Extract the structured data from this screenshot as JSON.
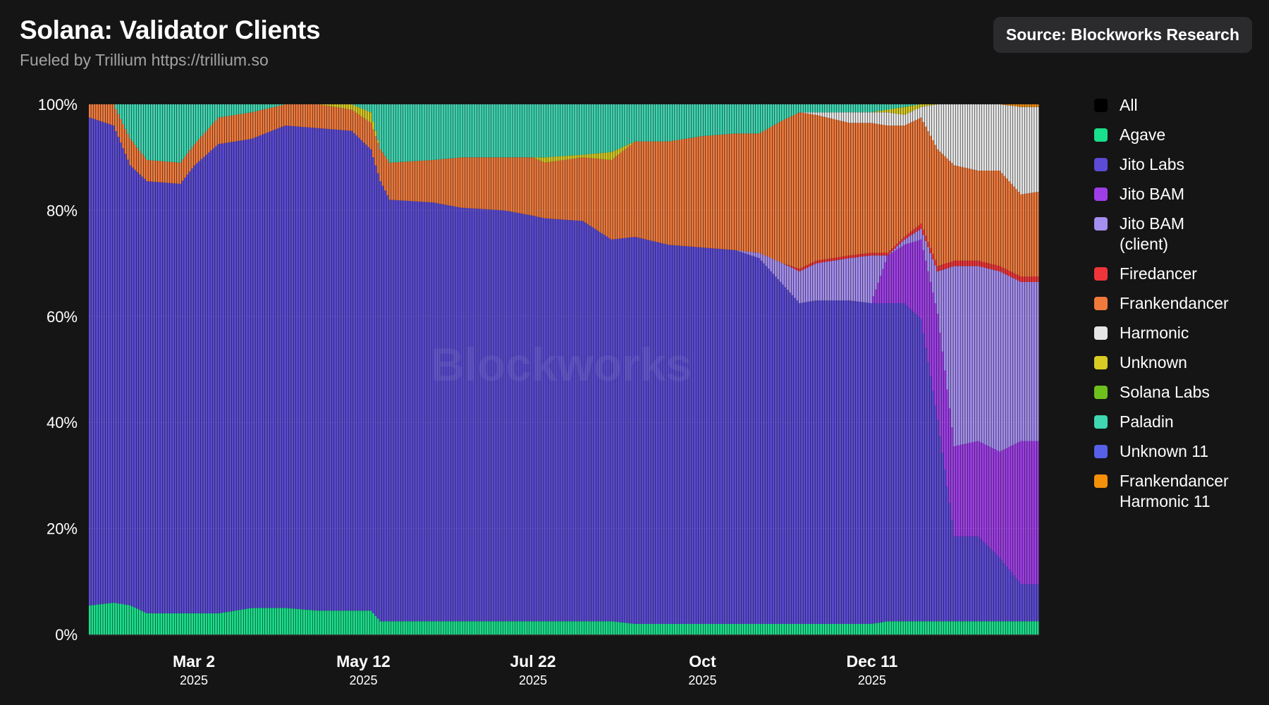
{
  "header": {
    "title": "Solana: Validator Clients",
    "subtitle": "Fueled by Trillium https://trillium.so",
    "source_badge": "Source: Blockworks Research"
  },
  "watermark": "Blockworks",
  "legend": [
    {
      "label": "All",
      "color": "#000000"
    },
    {
      "label": "Agave",
      "color": "#19e08b"
    },
    {
      "label": "Jito Labs",
      "color": "#5b4bd6"
    },
    {
      "label": "Jito BAM",
      "color": "#9f3ee8"
    },
    {
      "label": "Jito BAM\n(client)",
      "color": "#a48ef0"
    },
    {
      "label": "Firedancer",
      "color": "#f0353a"
    },
    {
      "label": "Frankendancer",
      "color": "#f07a3c"
    },
    {
      "label": "Harmonic",
      "color": "#e6e6e6"
    },
    {
      "label": "Unknown",
      "color": "#d8cc24"
    },
    {
      "label": "Solana Labs",
      "color": "#6ec01c"
    },
    {
      "label": "Paladin",
      "color": "#3fd6b2"
    },
    {
      "label": "Unknown 11",
      "color": "#5660e8"
    },
    {
      "label": "Frankendancer\nHarmonic 11",
      "color": "#f5900a"
    }
  ],
  "chart_data": {
    "type": "area",
    "stacked": true,
    "percent": true,
    "ylim": [
      0,
      100
    ],
    "yticks": [
      "0%",
      "20%",
      "40%",
      "60%",
      "80%",
      "100%"
    ],
    "xticks": [
      {
        "x": "2025-03-02",
        "label": "Mar 2",
        "year": "2025"
      },
      {
        "x": "2025-05-12",
        "label": "May 12",
        "year": "2025"
      },
      {
        "x": "2025-07-22",
        "label": "Jul 22",
        "year": "2025"
      },
      {
        "x": "2025-10-01",
        "label": "Oct",
        "year": "2025"
      },
      {
        "x": "2025-12-11",
        "label": "Dec 11",
        "year": "2025"
      }
    ],
    "x_range": [
      "2025-01-17",
      "2026-02-19"
    ],
    "series_order": [
      "Agave",
      "Jito Labs",
      "Jito BAM",
      "Jito BAM (client)",
      "Firedancer",
      "Frankendancer",
      "Harmonic",
      "Unknown",
      "Paladin",
      "Frankendancer Harmonic 11"
    ],
    "colors": {
      "Agave": "#19e08b",
      "Jito Labs": "#5b4bd6",
      "Jito BAM": "#9f3ee8",
      "Jito BAM (client)": "#a48ef0",
      "Firedancer": "#f0353a",
      "Frankendancer": "#f07a3c",
      "Harmonic": "#e6e6e6",
      "Unknown": "#d8cc24",
      "Paladin": "#3fd6b2",
      "Frankendancer Harmonic 11": "#f5900a"
    },
    "points": [
      {
        "x": "2025-01-17",
        "Agave": 5.5,
        "Jito Labs": 92,
        "Frankendancer": 2.5,
        "Paladin": 0
      },
      {
        "x": "2025-01-27",
        "Agave": 6,
        "Jito Labs": 90,
        "Frankendancer": 4,
        "Paladin": 0
      },
      {
        "x": "2025-02-03",
        "Agave": 5.5,
        "Jito Labs": 83,
        "Frankendancer": 5,
        "Paladin": 6.5
      },
      {
        "x": "2025-02-10",
        "Agave": 4,
        "Jito Labs": 81.5,
        "Frankendancer": 4,
        "Paladin": 10.5
      },
      {
        "x": "2025-02-24",
        "Agave": 4,
        "Jito Labs": 81,
        "Frankendancer": 4,
        "Paladin": 11
      },
      {
        "x": "2025-03-02",
        "Agave": 4,
        "Jito Labs": 84.5,
        "Frankendancer": 4,
        "Paladin": 7.5
      },
      {
        "x": "2025-03-12",
        "Agave": 4,
        "Jito Labs": 88.5,
        "Frankendancer": 5,
        "Paladin": 2.5
      },
      {
        "x": "2025-03-26",
        "Agave": 5,
        "Jito Labs": 88.5,
        "Frankendancer": 5,
        "Paladin": 1.5
      },
      {
        "x": "2025-04-09",
        "Agave": 5,
        "Jito Labs": 91,
        "Frankendancer": 4,
        "Paladin": 0
      },
      {
        "x": "2025-04-23",
        "Agave": 4.5,
        "Jito Labs": 91,
        "Frankendancer": 4.5,
        "Paladin": 0
      },
      {
        "x": "2025-05-07",
        "Agave": 4.5,
        "Jito Labs": 90.5,
        "Frankendancer": 4,
        "Unknown": 1,
        "Paladin": 0
      },
      {
        "x": "2025-05-15",
        "Agave": 4.5,
        "Jito Labs": 87,
        "Frankendancer": 5,
        "Unknown": 2,
        "Paladin": 1.5
      },
      {
        "x": "2025-05-19",
        "Agave": 2.5,
        "Jito Labs": 83,
        "Frankendancer": 6,
        "Paladin": 8.5
      },
      {
        "x": "2025-05-23",
        "Agave": 2.5,
        "Jito Labs": 79.5,
        "Frankendancer": 7,
        "Paladin": 11
      },
      {
        "x": "2025-06-10",
        "Agave": 2.5,
        "Jito Labs": 79,
        "Frankendancer": 8,
        "Paladin": 10.5
      },
      {
        "x": "2025-06-22",
        "Agave": 2.5,
        "Jito Labs": 78,
        "Frankendancer": 9.5,
        "Paladin": 10
      },
      {
        "x": "2025-07-10",
        "Agave": 2.5,
        "Jito Labs": 77.5,
        "Frankendancer": 10,
        "Paladin": 10
      },
      {
        "x": "2025-07-22",
        "Agave": 2.5,
        "Jito Labs": 76.5,
        "Frankendancer": 11,
        "Paladin": 10
      },
      {
        "x": "2025-07-27",
        "Agave": 2.5,
        "Jito Labs": 76,
        "Frankendancer": 10.5,
        "Unknown": 1,
        "Paladin": 10
      },
      {
        "x": "2025-08-12",
        "Agave": 2.5,
        "Jito Labs": 75.5,
        "Frankendancer": 12,
        "Unknown": 0.5,
        "Paladin": 9.5
      },
      {
        "x": "2025-08-24",
        "Agave": 2.5,
        "Jito Labs": 72,
        "Frankendancer": 15,
        "Unknown": 1.5,
        "Paladin": 9
      },
      {
        "x": "2025-09-03",
        "Agave": 2,
        "Jito Labs": 73,
        "Frankendancer": 18,
        "Paladin": 7
      },
      {
        "x": "2025-09-17",
        "Agave": 2,
        "Jito Labs": 71.5,
        "Frankendancer": 19.5,
        "Paladin": 7
      },
      {
        "x": "2025-10-01",
        "Agave": 2,
        "Jito Labs": 71,
        "Frankendancer": 21,
        "Paladin": 6
      },
      {
        "x": "2025-10-15",
        "Agave": 2,
        "Jito Labs": 70.5,
        "Frankendancer": 22,
        "Paladin": 5.5
      },
      {
        "x": "2025-10-25",
        "Agave": 2,
        "Jito Labs": 69,
        "Jito BAM (client)": 1,
        "Frankendancer": 22.5,
        "Paladin": 5.5
      },
      {
        "x": "2025-11-04",
        "Agave": 2,
        "Jito Labs": 64,
        "Jito BAM (client)": 4,
        "Frankendancer": 27,
        "Paladin": 3
      },
      {
        "x": "2025-11-11",
        "Agave": 2,
        "Jito Labs": 60.5,
        "Jito BAM (client)": 6,
        "Firedancer": 0.5,
        "Frankendancer": 29.5,
        "Paladin": 1.5
      },
      {
        "x": "2025-11-18",
        "Agave": 2,
        "Jito Labs": 61,
        "Jito BAM (client)": 7,
        "Firedancer": 0.5,
        "Frankendancer": 27.5,
        "Harmonic": 0.5,
        "Paladin": 1.5
      },
      {
        "x": "2025-12-02",
        "Agave": 2,
        "Jito Labs": 61,
        "Jito BAM (client)": 8,
        "Firedancer": 0.5,
        "Frankendancer": 25,
        "Harmonic": 2,
        "Paladin": 1.5
      },
      {
        "x": "2025-12-11",
        "Agave": 2,
        "Jito Labs": 60.5,
        "Jito BAM (client)": 9,
        "Firedancer": 0.5,
        "Frankendancer": 24.5,
        "Harmonic": 2,
        "Paladin": 1.5
      },
      {
        "x": "2025-12-18",
        "Agave": 2.5,
        "Jito Labs": 60,
        "Jito BAM": 9,
        "Firedancer": 0.5,
        "Frankendancer": 24,
        "Harmonic": 2.5,
        "Unknown": 0.5,
        "Paladin": 1
      },
      {
        "x": "2025-12-25",
        "Agave": 2.5,
        "Jito Labs": 60,
        "Jito BAM": 11,
        "Jito BAM (client)": 1,
        "Firedancer": 0.5,
        "Frankendancer": 21,
        "Harmonic": 2,
        "Unknown": 1.5,
        "Paladin": 0.5
      },
      {
        "x": "2026-01-01",
        "Agave": 2.5,
        "Jito Labs": 57,
        "Jito BAM": 15,
        "Jito BAM (client)": 2,
        "Firedancer": 1,
        "Frankendancer": 20,
        "Harmonic": 2,
        "Unknown": 0.5
      },
      {
        "x": "2026-01-08",
        "Agave": 2.5,
        "Jito Labs": 38,
        "Jito BAM": 20,
        "Jito BAM (client)": 8,
        "Firedancer": 1,
        "Frankendancer": 22,
        "Harmonic": 8.5
      },
      {
        "x": "2026-01-15",
        "Agave": 2.5,
        "Jito Labs": 16,
        "Jito BAM": 17,
        "Jito BAM (client)": 34,
        "Firedancer": 1,
        "Frankendancer": 18,
        "Harmonic": 11.5
      },
      {
        "x": "2026-01-25",
        "Agave": 2.5,
        "Jito Labs": 16,
        "Jito BAM": 18,
        "Jito BAM (client)": 33,
        "Firedancer": 1,
        "Frankendancer": 17,
        "Harmonic": 12.5
      },
      {
        "x": "2026-02-03",
        "Agave": 2.5,
        "Jito Labs": 12,
        "Jito BAM": 20,
        "Jito BAM (client)": 34,
        "Firedancer": 1,
        "Frankendancer": 18,
        "Harmonic": 12.5
      },
      {
        "x": "2026-02-12",
        "Agave": 2.5,
        "Jito Labs": 7,
        "Jito BAM": 27,
        "Jito BAM (client)": 30,
        "Firedancer": 1,
        "Frankendancer": 15.5,
        "Harmonic": 16.5,
        "Frankendancer Harmonic 11": 0.5
      },
      {
        "x": "2026-02-19",
        "Agave": 2.5,
        "Jito Labs": 7,
        "Jito BAM": 27,
        "Jito BAM (client)": 30,
        "Firedancer": 1,
        "Frankendancer": 16,
        "Harmonic": 16,
        "Frankendancer Harmonic 11": 0.5
      }
    ]
  }
}
